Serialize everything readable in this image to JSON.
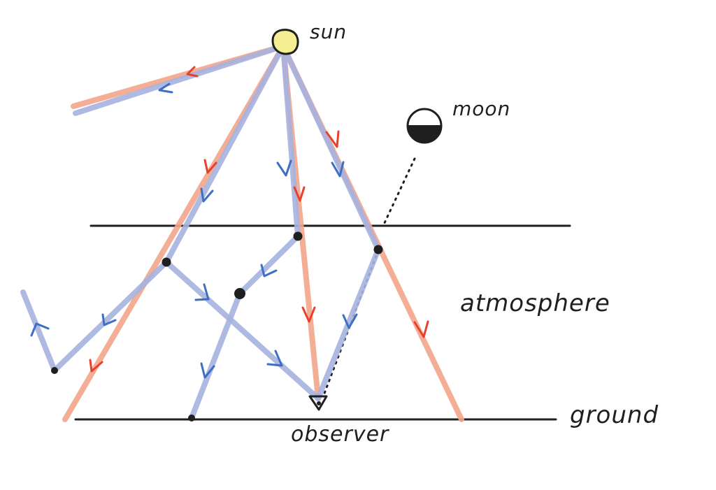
{
  "labels": {
    "sun": "sun",
    "moon": "moon",
    "atmosphere": "atmosphere",
    "ground": "ground",
    "observer": "observer"
  },
  "colors": {
    "red_ray": "#f3a58b",
    "blue_ray": "#a6b3df",
    "red_arrow": "#e8412b",
    "blue_arrow": "#3d6fc4",
    "sun_fill": "#f5ef92",
    "moon_fill": "#1f1f1f",
    "ink": "#1f1f1f"
  }
}
